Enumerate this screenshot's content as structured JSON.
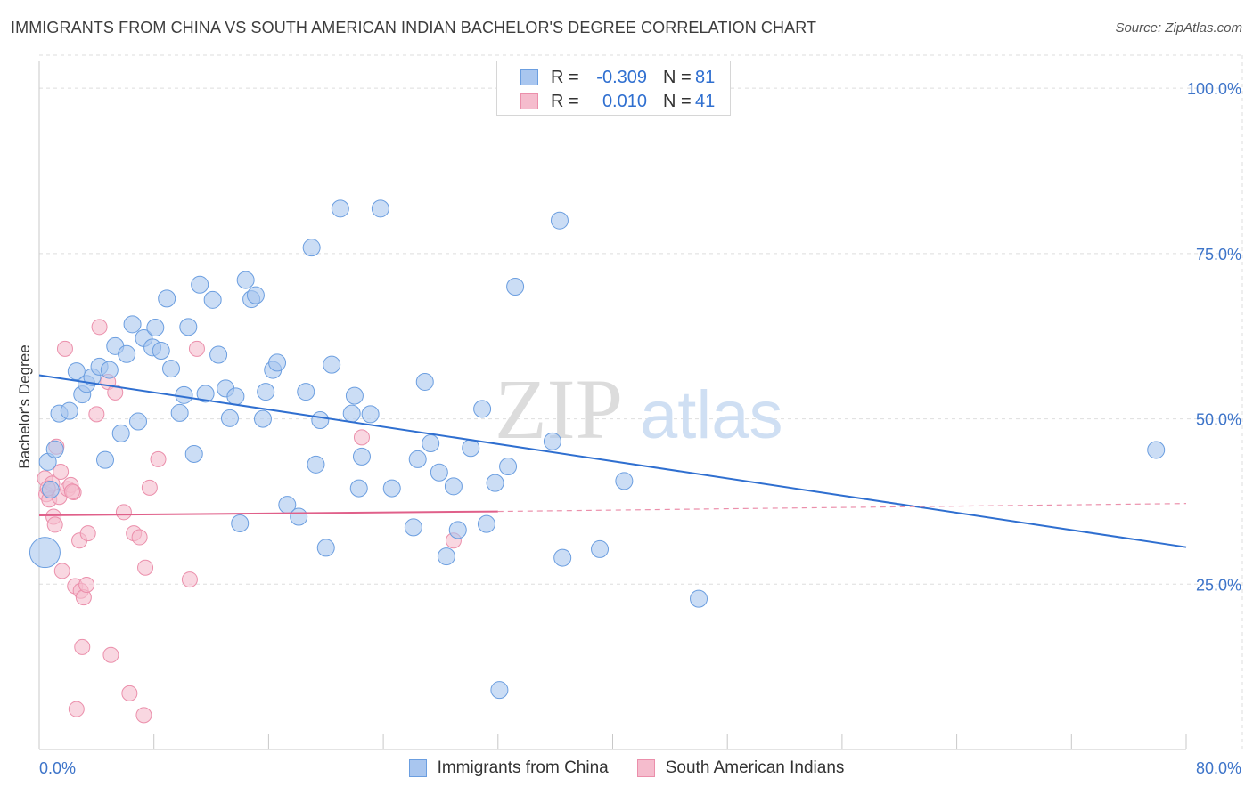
{
  "title": "IMMIGRANTS FROM CHINA VS SOUTH AMERICAN INDIAN BACHELOR'S DEGREE CORRELATION CHART",
  "source": "Source: ZipAtlas.com",
  "watermark": {
    "zip": "ZIP",
    "atlas": "atlas"
  },
  "legend_top": [
    {
      "r_label": "R =",
      "r_value": "-0.309",
      "n_label": "N =",
      "n_value": "81"
    },
    {
      "r_label": "R =",
      "r_value": "0.010",
      "n_label": "N =",
      "n_value": "41"
    }
  ],
  "legend_bottom": [
    "Immigrants from China",
    "South American Indians"
  ],
  "colors": {
    "blue_fill": "#a9c6ef",
    "blue_stroke": "#6b9ee0",
    "blue_line": "#2f6fd0",
    "pink_fill": "#f5bccd",
    "pink_stroke": "#eb8fab",
    "pink_line": "#e0608a",
    "tick_text": "#3d74c9",
    "grid": "#dedede"
  },
  "chart_data": {
    "type": "scatter",
    "title": "IMMIGRANTS FROM CHINA VS SOUTH AMERICAN INDIAN BACHELOR'S DEGREE CORRELATION CHART",
    "xlabel": "",
    "ylabel": "Bachelor's Degree",
    "xlim": [
      0,
      80
    ],
    "ylim": [
      0,
      105
    ],
    "x_tick_labels": [
      "0.0%",
      "80.0%"
    ],
    "y_ticks": [
      25,
      50,
      75,
      100
    ],
    "y_tick_labels": [
      "25.0%",
      "50.0%",
      "75.0%",
      "100.0%"
    ],
    "grid": true,
    "legend_position": "top-center",
    "series": [
      {
        "name": "Immigrants from China",
        "trend": {
          "x": [
            0,
            80
          ],
          "y": [
            56.6,
            30.6
          ]
        },
        "points": [
          [
            0.6,
            43.5
          ],
          [
            1.1,
            45.4
          ],
          [
            1.4,
            50.8
          ],
          [
            2.1,
            51.2
          ],
          [
            2.6,
            57.2
          ],
          [
            3.0,
            53.7
          ],
          [
            3.3,
            55.3
          ],
          [
            3.7,
            56.3
          ],
          [
            4.2,
            57.9
          ],
          [
            4.6,
            43.8
          ],
          [
            4.9,
            57.4
          ],
          [
            5.3,
            61.0
          ],
          [
            5.7,
            47.8
          ],
          [
            6.1,
            59.8
          ],
          [
            6.5,
            64.3
          ],
          [
            6.9,
            49.6
          ],
          [
            7.3,
            62.2
          ],
          [
            7.9,
            60.8
          ],
          [
            8.1,
            63.8
          ],
          [
            8.5,
            60.3
          ],
          [
            8.9,
            68.2
          ],
          [
            9.2,
            57.6
          ],
          [
            9.8,
            50.9
          ],
          [
            10.1,
            53.6
          ],
          [
            10.4,
            63.9
          ],
          [
            10.8,
            44.7
          ],
          [
            11.2,
            70.3
          ],
          [
            11.6,
            53.8
          ],
          [
            12.1,
            68.0
          ],
          [
            12.5,
            59.7
          ],
          [
            13.0,
            54.6
          ],
          [
            13.3,
            50.1
          ],
          [
            13.7,
            53.4
          ],
          [
            14.0,
            34.2
          ],
          [
            14.4,
            71.0
          ],
          [
            14.8,
            68.1
          ],
          [
            15.1,
            68.7
          ],
          [
            15.6,
            50.0
          ],
          [
            15.8,
            54.1
          ],
          [
            16.3,
            57.4
          ],
          [
            16.6,
            58.5
          ],
          [
            17.3,
            37.0
          ],
          [
            18.1,
            35.2
          ],
          [
            18.6,
            54.1
          ],
          [
            19.0,
            75.9
          ],
          [
            19.3,
            43.1
          ],
          [
            19.6,
            49.8
          ],
          [
            20.0,
            30.5
          ],
          [
            20.4,
            58.2
          ],
          [
            21.0,
            81.8
          ],
          [
            21.8,
            50.8
          ],
          [
            22.0,
            53.5
          ],
          [
            22.3,
            39.5
          ],
          [
            22.5,
            44.3
          ],
          [
            23.1,
            50.7
          ],
          [
            23.8,
            81.8
          ],
          [
            24.6,
            39.5
          ],
          [
            26.1,
            33.6
          ],
          [
            26.4,
            43.9
          ],
          [
            26.9,
            55.6
          ],
          [
            27.3,
            46.3
          ],
          [
            27.9,
            41.9
          ],
          [
            28.4,
            29.2
          ],
          [
            28.9,
            39.8
          ],
          [
            29.2,
            33.2
          ],
          [
            30.1,
            45.6
          ],
          [
            30.9,
            51.5
          ],
          [
            31.2,
            34.1
          ],
          [
            31.8,
            40.3
          ],
          [
            32.1,
            9.0
          ],
          [
            32.7,
            42.8
          ],
          [
            33.2,
            70.0
          ],
          [
            35.8,
            46.6
          ],
          [
            36.3,
            80.0
          ],
          [
            36.5,
            29.0
          ],
          [
            39.1,
            30.3
          ],
          [
            40.8,
            40.6
          ],
          [
            46.0,
            22.8
          ],
          [
            77.9,
            45.3
          ],
          [
            0.4,
            29.8
          ],
          [
            0.8,
            39.3
          ]
        ]
      },
      {
        "name": "South American Indians",
        "trend": {
          "x": [
            0,
            32
          ],
          "y": [
            35.4,
            36.0
          ]
        },
        "trend_dashed": {
          "x": [
            32,
            80
          ],
          "y": [
            36.0,
            37.2
          ]
        },
        "points": [
          [
            0.4,
            41.0
          ],
          [
            0.5,
            38.6
          ],
          [
            0.7,
            37.8
          ],
          [
            0.9,
            40.2
          ],
          [
            1.0,
            35.2
          ],
          [
            1.1,
            34.0
          ],
          [
            1.2,
            45.8
          ],
          [
            1.4,
            38.2
          ],
          [
            1.5,
            42.0
          ],
          [
            1.6,
            27.0
          ],
          [
            1.8,
            60.6
          ],
          [
            2.0,
            39.4
          ],
          [
            2.2,
            40.0
          ],
          [
            2.4,
            38.9
          ],
          [
            2.5,
            24.7
          ],
          [
            2.6,
            6.1
          ],
          [
            2.8,
            31.6
          ],
          [
            2.9,
            24.0
          ],
          [
            3.0,
            15.5
          ],
          [
            3.1,
            23.0
          ],
          [
            3.3,
            24.9
          ],
          [
            3.4,
            32.7
          ],
          [
            4.0,
            50.7
          ],
          [
            4.2,
            63.9
          ],
          [
            4.8,
            55.6
          ],
          [
            5.0,
            14.3
          ],
          [
            5.3,
            54.0
          ],
          [
            5.9,
            35.9
          ],
          [
            6.3,
            8.5
          ],
          [
            6.6,
            32.7
          ],
          [
            7.0,
            32.1
          ],
          [
            7.3,
            5.2
          ],
          [
            7.4,
            27.5
          ],
          [
            7.7,
            39.6
          ],
          [
            8.3,
            43.9
          ],
          [
            10.5,
            25.7
          ],
          [
            11.0,
            60.6
          ],
          [
            22.5,
            47.2
          ],
          [
            28.9,
            31.6
          ],
          [
            0.6,
            39.5
          ],
          [
            2.3,
            39.0
          ]
        ]
      }
    ]
  }
}
